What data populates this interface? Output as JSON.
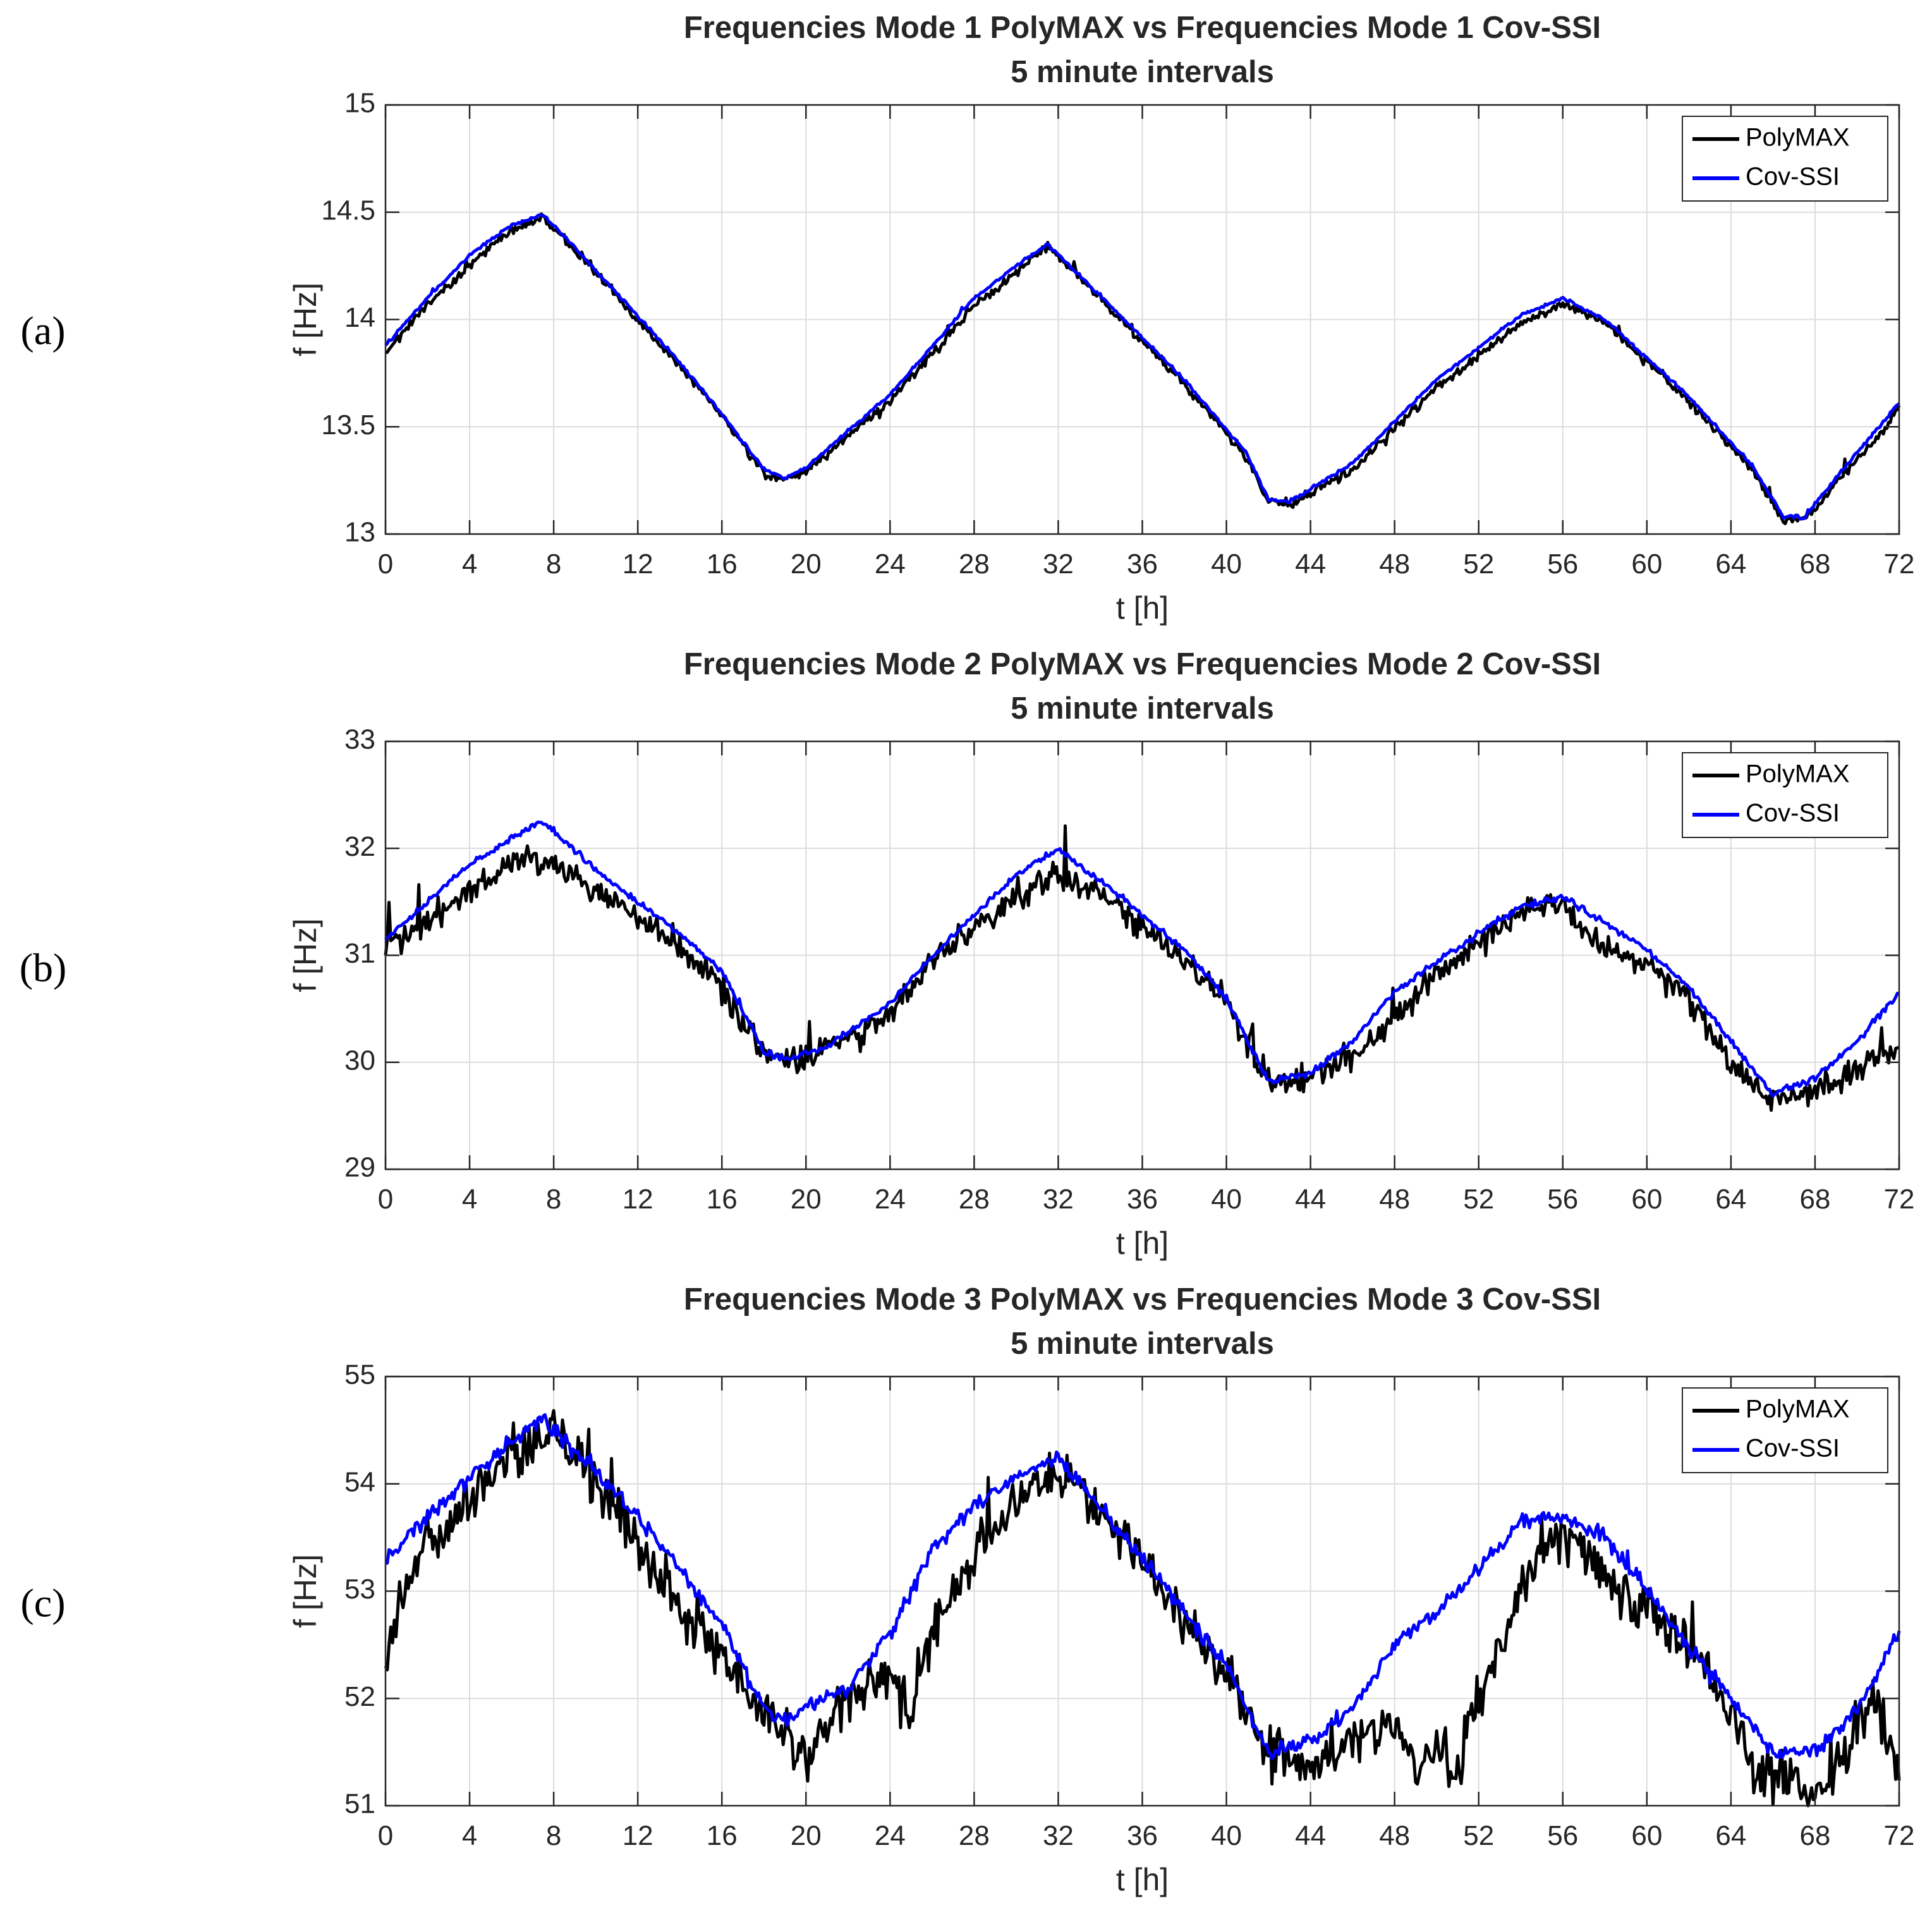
{
  "colors": {
    "polymax": "#000000",
    "covssi": "#0000ff",
    "grid": "#dcdcdc",
    "axis": "#262626"
  },
  "chart_data": [
    {
      "type": "line",
      "panel_label": "(a)",
      "title": "Frequencies Mode 1 PolyMAX vs Frequencies Mode 1 Cov-SSI",
      "subtitle": "5 minute intervals",
      "xlabel": "t [h]",
      "ylabel": "f [Hz]",
      "xlim": [
        0,
        72
      ],
      "ylim": [
        13,
        15
      ],
      "xticks": [
        0,
        4,
        8,
        12,
        16,
        20,
        24,
        28,
        32,
        36,
        40,
        44,
        48,
        52,
        56,
        60,
        64,
        68,
        72
      ],
      "yticks": [
        13,
        13.5,
        14,
        14.5,
        15
      ],
      "ytick_labels": [
        "13",
        "13.5",
        "14",
        "14.5",
        "15"
      ],
      "grid": true,
      "legend": "top-right",
      "noise": {
        "PolyMAX": 0.018,
        "Cov-SSI": 0.006
      },
      "series": [
        {
          "name": "PolyMAX",
          "color": "#000000",
          "points": [
            [
              0,
              13.85
            ],
            [
              2,
              14.07
            ],
            [
              4,
              14.25
            ],
            [
              6,
              14.42
            ],
            [
              7.5,
              14.48
            ],
            [
              10,
              14.22
            ],
            [
              14,
              13.78
            ],
            [
              16,
              13.55
            ],
            [
              18,
              13.28
            ],
            [
              19,
              13.25
            ],
            [
              20,
              13.29
            ],
            [
              24,
              13.62
            ],
            [
              28,
              14.06
            ],
            [
              30,
              14.22
            ],
            [
              31.5,
              14.34
            ],
            [
              34,
              14.1
            ],
            [
              38,
              13.7
            ],
            [
              41,
              13.35
            ],
            [
              42,
              13.15
            ],
            [
              43,
              13.14
            ],
            [
              46,
              13.3
            ],
            [
              50,
              13.68
            ],
            [
              54,
              13.98
            ],
            [
              56,
              14.08
            ],
            [
              58,
              13.98
            ],
            [
              62,
              13.62
            ],
            [
              65,
              13.3
            ],
            [
              66.5,
              13.06
            ],
            [
              67.5,
              13.07
            ],
            [
              70,
              13.35
            ],
            [
              72,
              13.58
            ]
          ]
        },
        {
          "name": "Cov-SSI",
          "color": "#0000ff",
          "points": [
            [
              0,
              13.88
            ],
            [
              2,
              14.1
            ],
            [
              4,
              14.3
            ],
            [
              6,
              14.44
            ],
            [
              7.5,
              14.49
            ],
            [
              10,
              14.23
            ],
            [
              14,
              13.8
            ],
            [
              16,
              13.56
            ],
            [
              18,
              13.3
            ],
            [
              19,
              13.26
            ],
            [
              20,
              13.31
            ],
            [
              24,
              13.65
            ],
            [
              28,
              14.1
            ],
            [
              30,
              14.25
            ],
            [
              31.5,
              14.35
            ],
            [
              34,
              14.11
            ],
            [
              38,
              13.72
            ],
            [
              41,
              13.37
            ],
            [
              42,
              13.16
            ],
            [
              43,
              13.15
            ],
            [
              46,
              13.33
            ],
            [
              50,
              13.72
            ],
            [
              54,
              14.02
            ],
            [
              56,
              14.1
            ],
            [
              58,
              14.0
            ],
            [
              62,
              13.64
            ],
            [
              65,
              13.32
            ],
            [
              66.5,
              13.08
            ],
            [
              67.5,
              13.08
            ],
            [
              70,
              13.38
            ],
            [
              72,
              13.61
            ]
          ]
        }
      ]
    },
    {
      "type": "line",
      "panel_label": "(b)",
      "title": "Frequencies Mode 2 PolyMAX vs Frequencies Mode 2 Cov-SSI",
      "subtitle": "5 minute intervals",
      "xlabel": "t [h]",
      "ylabel": "f [Hz]",
      "xlim": [
        0,
        72
      ],
      "ylim": [
        29,
        33
      ],
      "xticks": [
        0,
        4,
        8,
        12,
        16,
        20,
        24,
        28,
        32,
        36,
        40,
        44,
        48,
        52,
        56,
        60,
        64,
        68,
        72
      ],
      "yticks": [
        29,
        30,
        31,
        32,
        33
      ],
      "ytick_labels": [
        "29",
        "30",
        "31",
        "32",
        "33"
      ],
      "grid": true,
      "legend": "top-right",
      "noise": {
        "PolyMAX": 0.11,
        "Cov-SSI": 0.025
      },
      "series": [
        {
          "name": "PolyMAX",
          "color": "#000000",
          "points": [
            [
              0,
              31.05
            ],
            [
              2,
              31.35
            ],
            [
              4,
              31.6
            ],
            [
              6,
              31.88
            ],
            [
              8,
              31.9
            ],
            [
              10,
              31.6
            ],
            [
              14,
              31.1
            ],
            [
              16,
              30.7
            ],
            [
              18,
              30.1
            ],
            [
              19,
              30.02
            ],
            [
              21,
              30.12
            ],
            [
              24,
              30.45
            ],
            [
              26,
              30.95
            ],
            [
              30,
              31.55
            ],
            [
              32,
              31.78
            ],
            [
              34,
              31.55
            ],
            [
              38,
              30.95
            ],
            [
              40,
              30.6
            ],
            [
              42,
              29.82
            ],
            [
              44,
              29.85
            ],
            [
              46,
              30.05
            ],
            [
              48,
              30.4
            ],
            [
              50,
              30.85
            ],
            [
              54,
              31.4
            ],
            [
              56,
              31.45
            ],
            [
              58,
              31.05
            ],
            [
              60,
              30.9
            ],
            [
              62,
              30.6
            ],
            [
              64,
              30.0
            ],
            [
              66,
              29.65
            ],
            [
              68,
              29.75
            ],
            [
              70,
              29.95
            ],
            [
              72,
              30.1
            ]
          ]
        },
        {
          "name": "Cov-SSI",
          "color": "#0000ff",
          "points": [
            [
              0,
              31.15
            ],
            [
              2,
              31.5
            ],
            [
              4,
              31.85
            ],
            [
              6,
              32.1
            ],
            [
              7.5,
              32.25
            ],
            [
              10,
              31.8
            ],
            [
              14,
              31.2
            ],
            [
              16,
              30.85
            ],
            [
              18,
              30.1
            ],
            [
              19,
              30.03
            ],
            [
              21,
              30.15
            ],
            [
              24,
              30.55
            ],
            [
              26,
              31.0
            ],
            [
              30,
              31.75
            ],
            [
              32,
              32.0
            ],
            [
              34,
              31.7
            ],
            [
              38,
              31.05
            ],
            [
              40,
              30.6
            ],
            [
              42,
              29.82
            ],
            [
              44,
              29.9
            ],
            [
              46,
              30.2
            ],
            [
              48,
              30.65
            ],
            [
              50,
              30.95
            ],
            [
              54,
              31.45
            ],
            [
              56,
              31.55
            ],
            [
              58,
              31.3
            ],
            [
              60,
              31.05
            ],
            [
              62,
              30.7
            ],
            [
              64,
              30.2
            ],
            [
              66,
              29.7
            ],
            [
              68,
              29.85
            ],
            [
              70,
              30.2
            ],
            [
              72,
              30.65
            ]
          ]
        }
      ]
    },
    {
      "type": "line",
      "panel_label": "(c)",
      "title": "Frequencies Mode 3 PolyMAX vs Frequencies Mode 3 Cov-SSI",
      "subtitle": "5 minute intervals",
      "xlabel": "t [h]",
      "ylabel": "f [Hz]",
      "xlim": [
        0,
        72
      ],
      "ylim": [
        51,
        55
      ],
      "xticks": [
        0,
        4,
        8,
        12,
        16,
        20,
        24,
        28,
        32,
        36,
        40,
        44,
        48,
        52,
        56,
        60,
        64,
        68,
        72
      ],
      "yticks": [
        51,
        52,
        53,
        54,
        55
      ],
      "ytick_labels": [
        "51",
        "52",
        "53",
        "54",
        "55"
      ],
      "grid": true,
      "legend": "top-right",
      "noise": {
        "PolyMAX": 0.2,
        "Cov-SSI": 0.06
      },
      "series": [
        {
          "name": "PolyMAX",
          "color": "#000000",
          "points": [
            [
              0,
              52.2
            ],
            [
              0.5,
              52.8
            ],
            [
              2,
              53.4
            ],
            [
              4,
              53.85
            ],
            [
              6,
              54.25
            ],
            [
              8,
              54.5
            ],
            [
              10,
              54.0
            ],
            [
              12,
              53.5
            ],
            [
              14,
              52.9
            ],
            [
              16,
              52.4
            ],
            [
              18,
              51.9
            ],
            [
              20,
              51.4
            ],
            [
              22,
              52.0
            ],
            [
              24,
              52.2
            ],
            [
              25,
              51.8
            ],
            [
              26,
              52.6
            ],
            [
              28,
              53.3
            ],
            [
              30,
              53.8
            ],
            [
              32,
              54.15
            ],
            [
              34,
              53.7
            ],
            [
              36,
              53.3
            ],
            [
              38,
              52.7
            ],
            [
              40,
              52.2
            ],
            [
              42,
              51.55
            ],
            [
              44,
              51.35
            ],
            [
              46,
              51.6
            ],
            [
              48,
              51.7
            ],
            [
              49,
              51.4
            ],
            [
              50,
              51.5
            ],
            [
              51,
              51.3
            ],
            [
              52,
              52.0
            ],
            [
              54,
              53.0
            ],
            [
              55,
              53.5
            ],
            [
              56,
              53.5
            ],
            [
              58,
              53.2
            ],
            [
              60,
              52.8
            ],
            [
              62,
              52.5
            ],
            [
              64,
              51.9
            ],
            [
              65,
              51.35
            ],
            [
              66,
              51.3
            ],
            [
              68,
              51.1
            ],
            [
              69,
              51.3
            ],
            [
              70,
              51.7
            ],
            [
              71,
              52.0
            ],
            [
              72,
              51.3
            ]
          ]
        },
        {
          "name": "Cov-SSI",
          "color": "#0000ff",
          "points": [
            [
              0,
              53.3
            ],
            [
              2,
              53.7
            ],
            [
              4,
              54.05
            ],
            [
              6,
              54.4
            ],
            [
              7.5,
              54.6
            ],
            [
              10,
              54.1
            ],
            [
              12,
              53.7
            ],
            [
              14,
              53.2
            ],
            [
              16,
              52.7
            ],
            [
              18,
              51.9
            ],
            [
              19,
              51.8
            ],
            [
              20,
              51.9
            ],
            [
              22,
              52.1
            ],
            [
              24,
              52.6
            ],
            [
              26,
              53.4
            ],
            [
              28,
              53.8
            ],
            [
              30,
              54.05
            ],
            [
              32,
              54.25
            ],
            [
              34,
              53.8
            ],
            [
              36,
              53.3
            ],
            [
              38,
              52.8
            ],
            [
              40,
              52.3
            ],
            [
              42,
              51.5
            ],
            [
              44,
              51.6
            ],
            [
              46,
              51.9
            ],
            [
              48,
              52.5
            ],
            [
              50,
              52.8
            ],
            [
              52,
              53.2
            ],
            [
              54,
              53.65
            ],
            [
              56,
              53.7
            ],
            [
              58,
              53.5
            ],
            [
              60,
              53.0
            ],
            [
              62,
              52.5
            ],
            [
              64,
              52.0
            ],
            [
              66,
              51.5
            ],
            [
              68,
              51.5
            ],
            [
              70,
              51.9
            ],
            [
              72,
              52.6
            ]
          ]
        }
      ]
    }
  ]
}
